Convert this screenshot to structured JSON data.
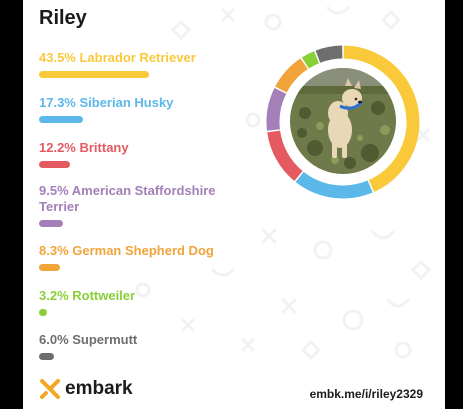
{
  "dog_name": "Riley",
  "breeds": [
    {
      "label": "43.5% Labrador Retriever",
      "percent": 43.5,
      "color": "#F9C93A"
    },
    {
      "label": "17.3% Siberian Husky",
      "percent": 17.3,
      "color": "#5BB8E8"
    },
    {
      "label": "12.2% Brittany",
      "percent": 12.2,
      "color": "#E55A60"
    },
    {
      "label": "9.5% American Staffordshire Terrier",
      "percent": 9.5,
      "color": "#A57FB8"
    },
    {
      "label": "8.3% German Shepherd Dog",
      "percent": 8.3,
      "color": "#F0A43A"
    },
    {
      "label": "3.2% Rottweiler",
      "percent": 3.2,
      "color": "#8ACF3A"
    },
    {
      "label": "6.0% Supermutt",
      "percent": 6.0,
      "color": "#6E6E6E"
    }
  ],
  "brand": {
    "name": "embark",
    "logo_color": "#F5A623"
  },
  "share_url": "embk.me/i/riley2329"
}
